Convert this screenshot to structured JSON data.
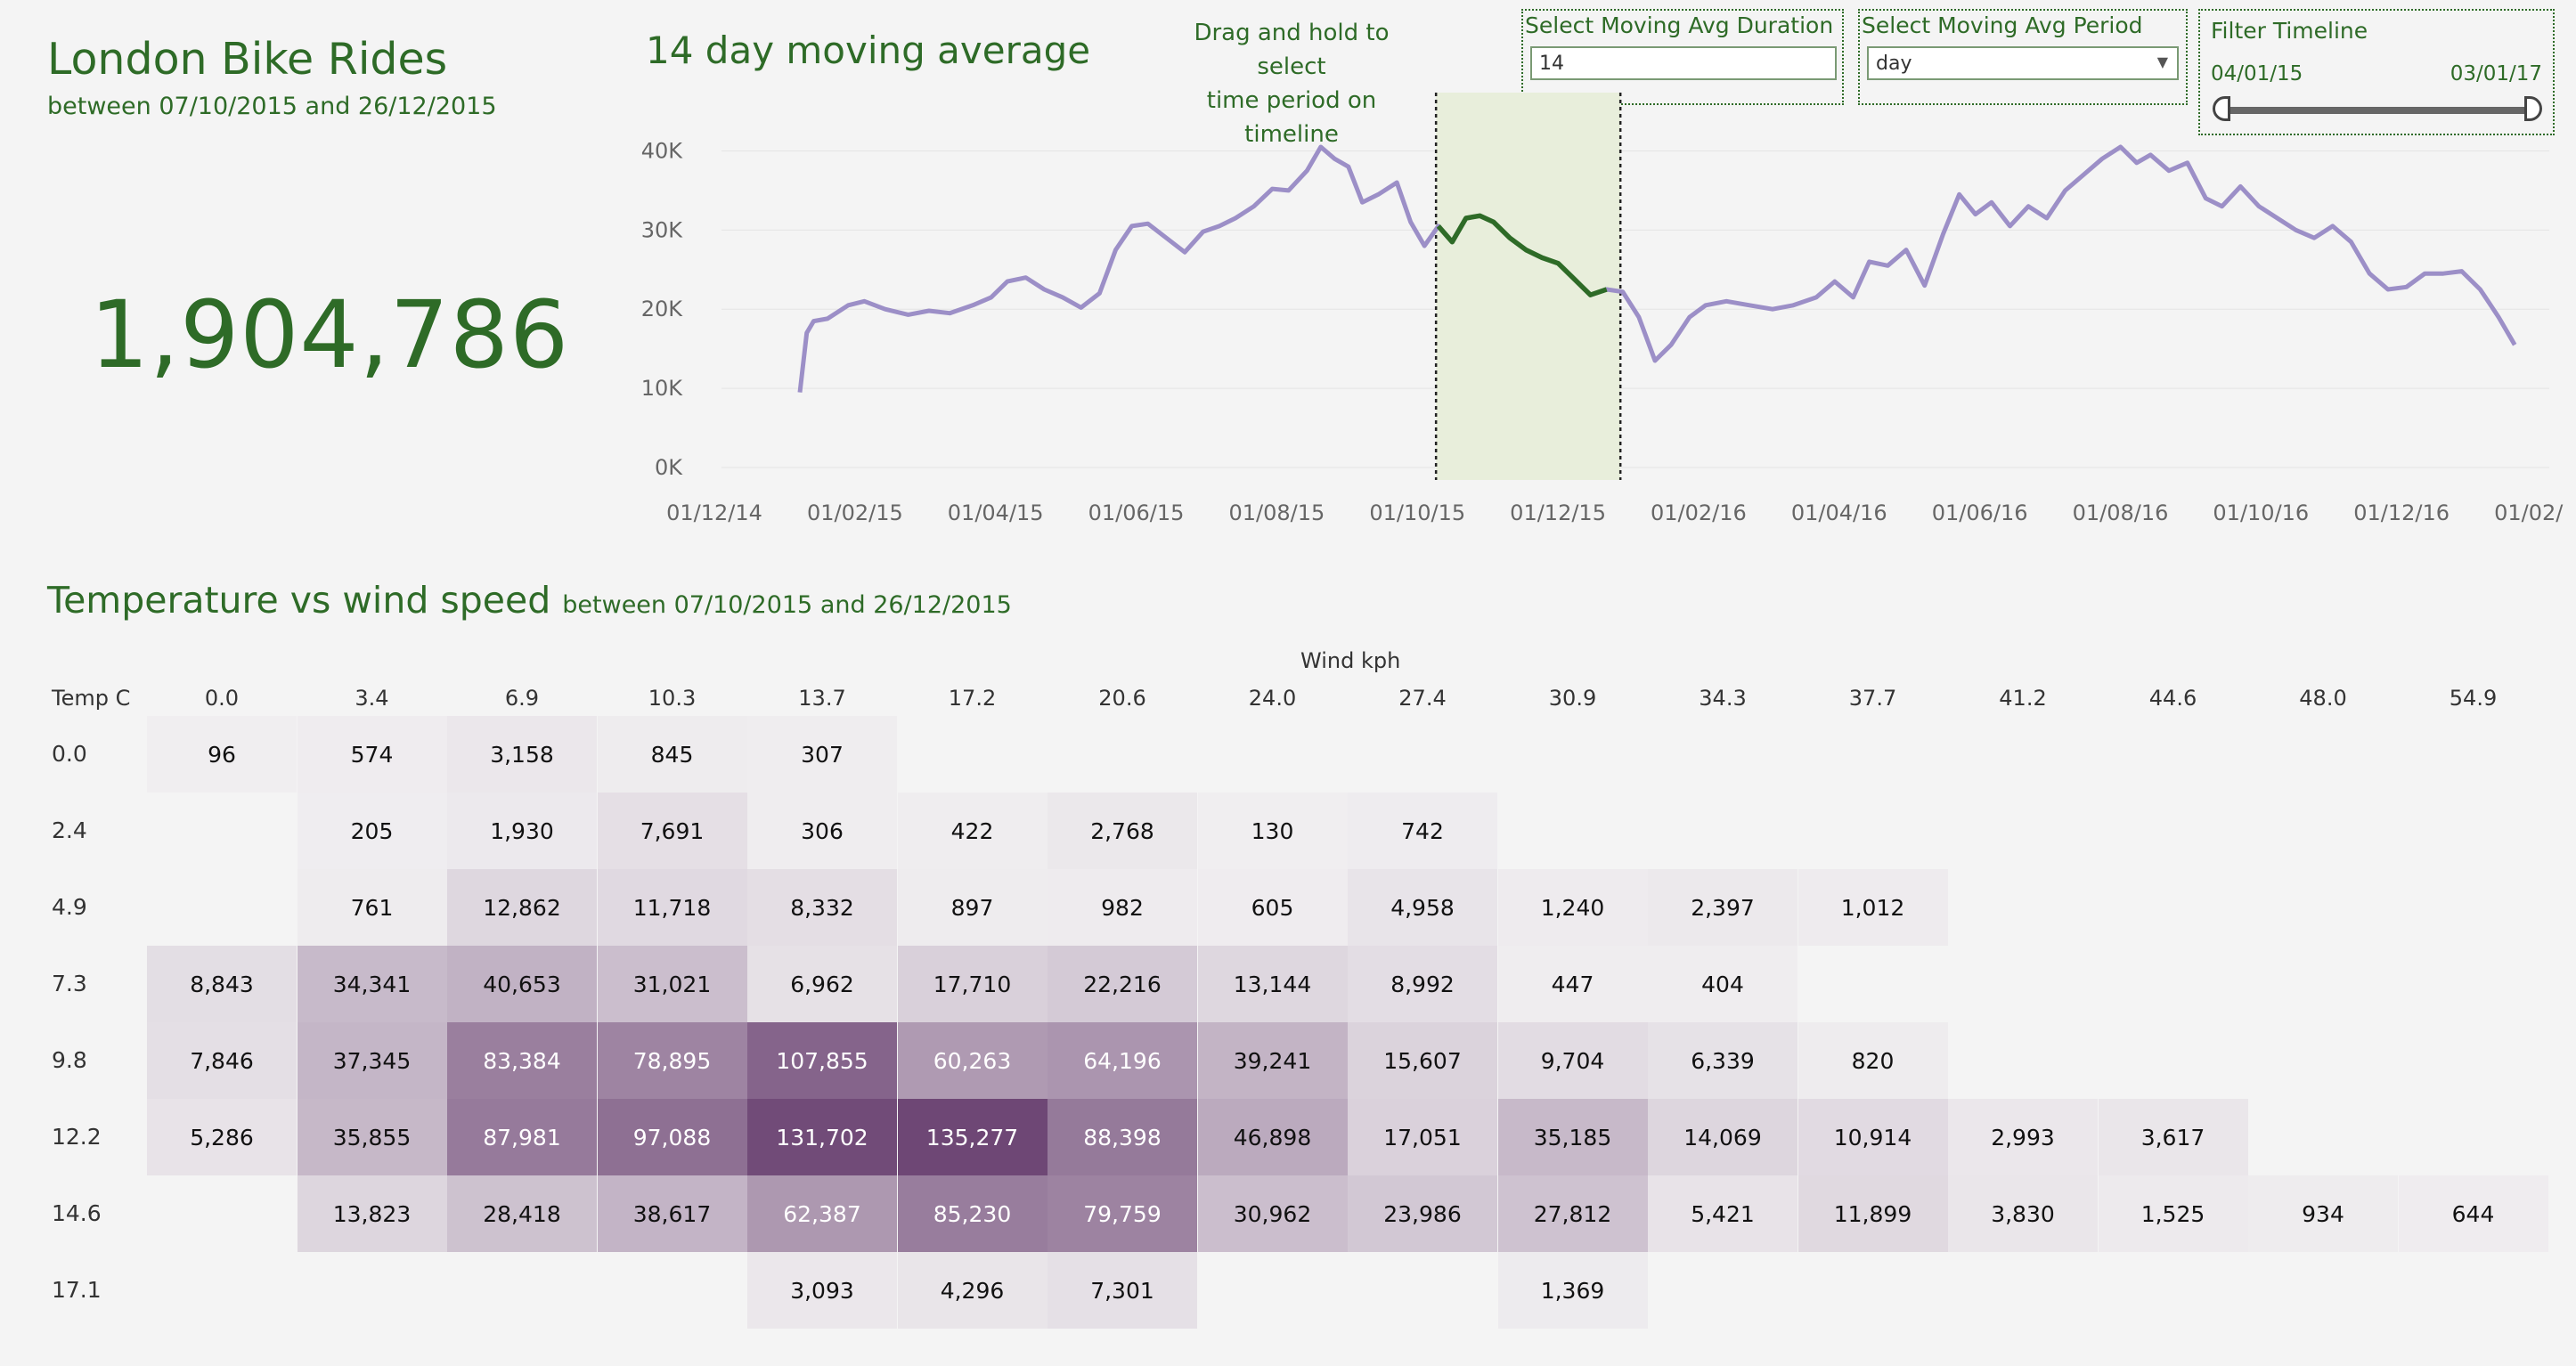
{
  "dashboard": {
    "title": "London Bike Rides",
    "subtitle": "between 07/10/2015 and 26/12/2015",
    "total_rides": "1,904,786"
  },
  "line_chart": {
    "title": "14 day moving average",
    "drag_hint_line1": "Drag and hold to select",
    "drag_hint_line2": "time period on timeline"
  },
  "controls": {
    "duration_label": "Select Moving Avg Duration",
    "duration_value": "14",
    "period_label": "Select Moving Avg Period",
    "period_value": "day",
    "timeline_label": "Filter Timeline",
    "timeline_start": "04/01/15",
    "timeline_end": "03/01/17"
  },
  "heatmap": {
    "title": "Temperature vs wind speed",
    "title_sub": "between 07/10/2015 and 26/12/2015",
    "x_title": "Wind kph",
    "y_title": "Temp C"
  },
  "colors": {
    "brand_green": "#2e6b27",
    "line_color": "#9c8fc7",
    "highlight_fill": "#e8eedb",
    "heat_max": "#6e4775"
  },
  "chart_data": [
    {
      "type": "line",
      "title": "14 day moving average",
      "x_tick_labels": [
        "01/12/14",
        "01/02/15",
        "01/04/15",
        "01/06/15",
        "01/08/15",
        "01/10/15",
        "01/12/15",
        "01/02/16",
        "01/04/16",
        "01/06/16",
        "01/08/16",
        "01/10/16",
        "01/12/16",
        "01/02/17"
      ],
      "y_tick_labels": [
        "0K",
        "10K",
        "20K",
        "30K",
        "40K"
      ],
      "ylim": [
        0,
        45000
      ],
      "x_start": "2014-12-01",
      "x_end": "2017-02-01",
      "selection": {
        "start": "2015-10-07",
        "end": "2015-12-26"
      },
      "series": [
        {
          "points": [
            [
              "2015-01-04",
              9500
            ],
            [
              "2015-01-07",
              17000
            ],
            [
              "2015-01-10",
              18500
            ],
            [
              "2015-01-16",
              18800
            ],
            [
              "2015-01-25",
              20500
            ],
            [
              "2015-02-01",
              21000
            ],
            [
              "2015-02-10",
              20000
            ],
            [
              "2015-02-20",
              19300
            ],
            [
              "2015-03-01",
              19800
            ],
            [
              "2015-03-10",
              19500
            ],
            [
              "2015-03-20",
              20500
            ],
            [
              "2015-03-28",
              21500
            ],
            [
              "2015-04-04",
              23500
            ],
            [
              "2015-04-12",
              24000
            ],
            [
              "2015-04-20",
              22500
            ],
            [
              "2015-04-28",
              21500
            ],
            [
              "2015-05-06",
              20200
            ],
            [
              "2015-05-14",
              22000
            ],
            [
              "2015-05-21",
              27500
            ],
            [
              "2015-05-28",
              30500
            ],
            [
              "2015-06-04",
              30800
            ],
            [
              "2015-06-12",
              29000
            ],
            [
              "2015-06-20",
              27200
            ],
            [
              "2015-06-28",
              29800
            ],
            [
              "2015-07-05",
              30500
            ],
            [
              "2015-07-12",
              31500
            ],
            [
              "2015-07-20",
              33000
            ],
            [
              "2015-07-28",
              35200
            ],
            [
              "2015-08-04",
              35000
            ],
            [
              "2015-08-12",
              37500
            ],
            [
              "2015-08-18",
              40500
            ],
            [
              "2015-08-24",
              39000
            ],
            [
              "2015-08-30",
              38000
            ],
            [
              "2015-09-05",
              33500
            ],
            [
              "2015-09-12",
              34500
            ],
            [
              "2015-09-20",
              36000
            ],
            [
              "2015-09-26",
              31000
            ],
            [
              "2015-10-02",
              28000
            ],
            [
              "2015-10-08",
              30500
            ],
            [
              "2015-10-14",
              28500
            ],
            [
              "2015-10-20",
              31500
            ],
            [
              "2015-10-26",
              31800
            ],
            [
              "2015-11-01",
              31000
            ],
            [
              "2015-11-08",
              29000
            ],
            [
              "2015-11-15",
              27500
            ],
            [
              "2015-11-22",
              26500
            ],
            [
              "2015-11-29",
              25800
            ],
            [
              "2015-12-06",
              23800
            ],
            [
              "2015-12-13",
              21800
            ],
            [
              "2015-12-20",
              22500
            ],
            [
              "2015-12-27",
              22200
            ],
            [
              "2016-01-03",
              19000
            ],
            [
              "2016-01-10",
              13500
            ],
            [
              "2016-01-17",
              15500
            ],
            [
              "2016-01-25",
              19000
            ],
            [
              "2016-02-01",
              20500
            ],
            [
              "2016-02-10",
              21000
            ],
            [
              "2016-02-20",
              20500
            ],
            [
              "2016-03-01",
              20000
            ],
            [
              "2016-03-10",
              20500
            ],
            [
              "2016-03-20",
              21500
            ],
            [
              "2016-03-28",
              23500
            ],
            [
              "2016-04-05",
              21500
            ],
            [
              "2016-04-12",
              26000
            ],
            [
              "2016-04-20",
              25500
            ],
            [
              "2016-04-28",
              27500
            ],
            [
              "2016-05-06",
              23000
            ],
            [
              "2016-05-14",
              29500
            ],
            [
              "2016-05-21",
              34500
            ],
            [
              "2016-05-28",
              32000
            ],
            [
              "2016-06-04",
              33500
            ],
            [
              "2016-06-12",
              30500
            ],
            [
              "2016-06-20",
              33000
            ],
            [
              "2016-06-28",
              31500
            ],
            [
              "2016-07-06",
              35000
            ],
            [
              "2016-07-14",
              37000
            ],
            [
              "2016-07-22",
              39000
            ],
            [
              "2016-07-30",
              40500
            ],
            [
              "2016-08-06",
              38500
            ],
            [
              "2016-08-12",
              39500
            ],
            [
              "2016-08-20",
              37500
            ],
            [
              "2016-08-28",
              38500
            ],
            [
              "2016-09-05",
              34000
            ],
            [
              "2016-09-12",
              33000
            ],
            [
              "2016-09-20",
              35500
            ],
            [
              "2016-09-28",
              33000
            ],
            [
              "2016-10-06",
              31500
            ],
            [
              "2016-10-14",
              30000
            ],
            [
              "2016-10-22",
              29000
            ],
            [
              "2016-10-30",
              30500
            ],
            [
              "2016-11-07",
              28500
            ],
            [
              "2016-11-15",
              24500
            ],
            [
              "2016-11-23",
              22500
            ],
            [
              "2016-12-01",
              22800
            ],
            [
              "2016-12-09",
              24500
            ],
            [
              "2016-12-17",
              24500
            ],
            [
              "2016-12-25",
              24800
            ],
            [
              "2017-01-02",
              22500
            ],
            [
              "2017-01-10",
              19000
            ],
            [
              "2017-01-17",
              15500
            ]
          ]
        }
      ]
    },
    {
      "type": "heatmap",
      "title": "Temperature vs wind speed",
      "xlabel": "Wind kph",
      "ylabel": "Temp C",
      "x": [
        "0.0",
        "3.4",
        "6.9",
        "10.3",
        "13.7",
        "17.2",
        "20.6",
        "24.0",
        "27.4",
        "30.9",
        "34.3",
        "37.7",
        "41.2",
        "44.6",
        "48.0",
        "54.9"
      ],
      "y": [
        "0.0",
        "2.4",
        "4.9",
        "7.3",
        "9.8",
        "12.2",
        "14.6",
        "17.1"
      ],
      "values": [
        [
          96,
          574,
          3158,
          845,
          307,
          null,
          null,
          null,
          null,
          null,
          null,
          null,
          null,
          null,
          null,
          null
        ],
        [
          null,
          205,
          1930,
          7691,
          306,
          422,
          2768,
          130,
          742,
          null,
          null,
          null,
          null,
          null,
          null,
          null
        ],
        [
          null,
          761,
          12862,
          11718,
          8332,
          897,
          982,
          605,
          4958,
          1240,
          2397,
          1012,
          null,
          null,
          null,
          null
        ],
        [
          8843,
          34341,
          40653,
          31021,
          6962,
          17710,
          22216,
          13144,
          8992,
          447,
          404,
          null,
          null,
          null,
          null,
          null
        ],
        [
          7846,
          37345,
          83384,
          78895,
          107855,
          60263,
          64196,
          39241,
          15607,
          9704,
          6339,
          820,
          null,
          null,
          null,
          null
        ],
        [
          5286,
          35855,
          87981,
          97088,
          131702,
          135277,
          88398,
          46898,
          17051,
          35185,
          14069,
          10914,
          2993,
          3617,
          null,
          null
        ],
        [
          null,
          13823,
          28418,
          38617,
          62387,
          85230,
          79759,
          30962,
          23986,
          27812,
          5421,
          11899,
          3830,
          1525,
          934,
          644
        ],
        [
          null,
          null,
          null,
          null,
          3093,
          4296,
          7301,
          null,
          null,
          1369,
          null,
          null,
          null,
          null,
          null,
          null
        ]
      ]
    }
  ]
}
